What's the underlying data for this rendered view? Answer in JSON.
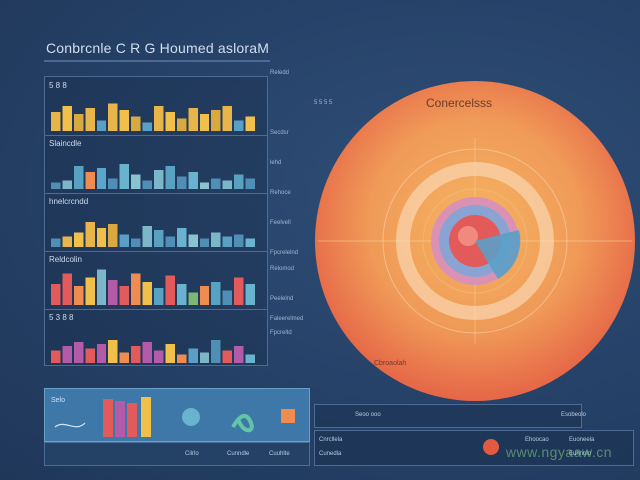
{
  "dashboard": {
    "title": "Conbrcnle C R G Houmed asloraM",
    "panel_labels": [
      "5 8 8",
      "Slaincdle",
      "hnelcrcndd",
      "Reldcolin",
      "5 3 8 8"
    ],
    "mid_labels": [
      "Reledd",
      "5 5 5 5",
      "Secdsr",
      "lehd",
      "Rehoce",
      "Feelvell",
      "Fpcrelelnd",
      "Relomod",
      "Peelelnd",
      "Faleerelmed",
      "Fpcreltd"
    ],
    "circle_title": "Conercelsss",
    "circle_caption": "Cbroaolah",
    "bottom_left_label": "Selo",
    "bottom_left_footer": [
      "Cilrlo",
      "Cunndle",
      "Cuuhlte"
    ],
    "bottom_right_items": [
      "Seoo ooo",
      "Esobeolo"
    ],
    "bottom_right2_items": [
      "Cnrcllela",
      "Cunedla",
      "Ehoocao",
      "Euoneela",
      "Euhnolo"
    ],
    "watermark": "www.ngyaaw.cn"
  },
  "colors": {
    "background": "#26436a",
    "panel_border": "#4d6b94",
    "circle_light": "#f5b462",
    "circle_dark": "#e35a43",
    "accent_blue": "#3e78a9"
  },
  "rows": [
    {
      "values": [
        18,
        24,
        16,
        22,
        10,
        26,
        20,
        14,
        8,
        24,
        18,
        12,
        22,
        16,
        20,
        24,
        10,
        14
      ],
      "colors": [
        "#e8b54a",
        "#f0c04b",
        "#d9a93f",
        "#e8b54a",
        "#5aa0c6",
        "#e8b54a",
        "#f0c04b",
        "#d9a93f",
        "#5aa0c6",
        "#e8b54a",
        "#f0c04b",
        "#d9a93f",
        "#e8b54a",
        "#f0c04b",
        "#d9a93f",
        "#e8b54a",
        "#5aa0c6",
        "#f0c04b"
      ]
    },
    {
      "values": [
        6,
        8,
        22,
        16,
        20,
        10,
        24,
        14,
        8,
        18,
        22,
        12,
        16,
        6,
        10,
        8,
        14,
        10
      ],
      "colors": [
        "#4f8fb6",
        "#7cb6c9",
        "#58a1c1",
        "#ef8c4f",
        "#5ca7c9",
        "#4f8fb6",
        "#6ab3cf",
        "#8bc2d0",
        "#4f8fb6",
        "#7cb6c9",
        "#58a1c1",
        "#4f8fb6",
        "#6ab3cf",
        "#8bc2d0",
        "#4f8fb6",
        "#7cb6c9",
        "#58a1c1",
        "#4f8fb6"
      ]
    },
    {
      "values": [
        8,
        10,
        14,
        24,
        18,
        22,
        12,
        8,
        20,
        16,
        10,
        18,
        12,
        8,
        14,
        10,
        12,
        8
      ],
      "colors": [
        "#4f8fb6",
        "#e8b54a",
        "#f0c04b",
        "#e8b54a",
        "#f0c04b",
        "#d9a93f",
        "#5aa0c6",
        "#4f8fb6",
        "#7cb6c9",
        "#58a1c1",
        "#4f8fb6",
        "#6ab3cf",
        "#8bc2d0",
        "#4f8fb6",
        "#7cb6c9",
        "#58a1c1",
        "#4f8fb6",
        "#6ab3cf"
      ]
    },
    {
      "values": [
        20,
        30,
        18,
        26,
        34,
        24,
        18,
        30,
        22,
        16,
        28,
        20,
        12,
        18,
        22,
        14,
        26,
        20
      ],
      "colors": [
        "#e35a5a",
        "#e35a5a",
        "#ef8c4f",
        "#f0c04b",
        "#7cb6c9",
        "#b35aa9",
        "#e35a5a",
        "#ef8c4f",
        "#f0c04b",
        "#58a1c1",
        "#e35a5a",
        "#6ab3cf",
        "#7cb874",
        "#ef8c4f",
        "#58a1c1",
        "#4f8fb6",
        "#e35a5a",
        "#6ab3cf"
      ]
    },
    {
      "values": [
        12,
        16,
        20,
        14,
        18,
        22,
        10,
        16,
        20,
        12,
        18,
        8,
        14,
        10,
        22,
        12,
        16,
        8
      ],
      "colors": [
        "#e35a5a",
        "#b35aa9",
        "#b35aa9",
        "#e35a5a",
        "#b35aa9",
        "#f0c04b",
        "#ef8c4f",
        "#e35a5a",
        "#b35aa9",
        "#b35aa9",
        "#f0c04b",
        "#ef8c4f",
        "#5aa0c6",
        "#7cb6c9",
        "#4f8fb6",
        "#e35a5a",
        "#b35aa9",
        "#6ab3cf"
      ]
    }
  ]
}
